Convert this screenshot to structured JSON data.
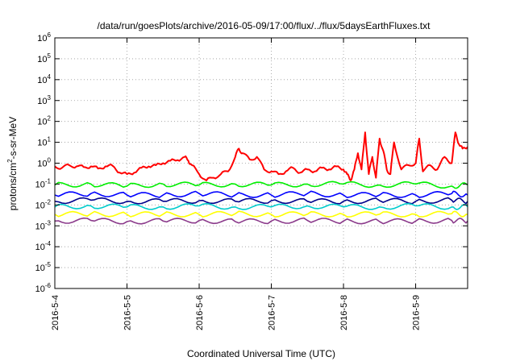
{
  "chart_data": {
    "type": "line",
    "title": "/data/run/goesPlots/archive/2016-05-09/17:00/flux/../flux/5daysEarthFluxes.txt",
    "xlabel": "Coordinated Universal Time (UTC)",
    "ylabel": {
      "prefix": "protons/cm",
      "sup": "2",
      "suffix": "-s-sr-MeV"
    },
    "y_scale": "log",
    "ylim": [
      1e-06,
      1000000.0
    ],
    "y_ticks": [
      {
        "value": 1e-06,
        "base": "10",
        "exp": "-6"
      },
      {
        "value": 1e-05,
        "base": "10",
        "exp": "-5"
      },
      {
        "value": 0.0001,
        "base": "10",
        "exp": "-4"
      },
      {
        "value": 0.001,
        "base": "10",
        "exp": "-3"
      },
      {
        "value": 0.01,
        "base": "10",
        "exp": "-2"
      },
      {
        "value": 0.1,
        "base": "10",
        "exp": "-1"
      },
      {
        "value": 1,
        "base": "10",
        "exp": "0"
      },
      {
        "value": 10,
        "base": "10",
        "exp": "1"
      },
      {
        "value": 100,
        "base": "10",
        "exp": "2"
      },
      {
        "value": 1000,
        "base": "10",
        "exp": "3"
      },
      {
        "value": 10000,
        "base": "10",
        "exp": "4"
      },
      {
        "value": 100000,
        "base": "10",
        "exp": "5"
      },
      {
        "value": 1000000,
        "base": "10",
        "exp": "6"
      }
    ],
    "x_ticks": [
      "2016-5-4",
      "2016-5-5",
      "2016-5-6",
      "2016-5-7",
      "2016-5-8",
      "2016-5-9"
    ],
    "x_range_days": [
      0,
      5.72
    ],
    "grid": "dotted",
    "colors": {
      "red": "#ff0000",
      "green": "#00ee00",
      "blue": "#0000ff",
      "navy": "#00008b",
      "cyan": "#00cccc",
      "yellow": "#ffff00",
      "purple": "#8b3a8b"
    },
    "series": [
      {
        "color": "#ff0000",
        "x": [
          0,
          0.1,
          0.2,
          0.3,
          0.4,
          0.5,
          0.6,
          0.7,
          0.8,
          0.9,
          1.0,
          1.1,
          1.2,
          1.3,
          1.4,
          1.5,
          1.6,
          1.7,
          1.8,
          1.85,
          1.9,
          2.0,
          2.1,
          2.2,
          2.3,
          2.4,
          2.5,
          2.55,
          2.6,
          2.7,
          2.8,
          2.9,
          3.0,
          3.1,
          3.2,
          3.3,
          3.4,
          3.5,
          3.6,
          3.7,
          3.8,
          3.9,
          4.0,
          4.05,
          4.1,
          4.15,
          4.2,
          4.25,
          4.3,
          4.35,
          4.4,
          4.45,
          4.5,
          4.55,
          4.6,
          4.65,
          4.7,
          4.8,
          4.9,
          5.0,
          5.05,
          5.1,
          5.2,
          5.3,
          5.4,
          5.5,
          5.55,
          5.6,
          5.65,
          5.72
        ],
        "y": [
          0.7,
          0.6,
          0.8,
          0.7,
          0.65,
          0.7,
          0.55,
          0.7,
          0.75,
          0.35,
          0.3,
          0.35,
          0.6,
          0.7,
          0.8,
          1.0,
          1.3,
          1.4,
          2.0,
          1.3,
          0.8,
          0.3,
          0.15,
          0.2,
          0.3,
          0.4,
          2.0,
          5.0,
          3.0,
          1.5,
          2.0,
          0.5,
          0.4,
          0.3,
          0.4,
          0.6,
          0.35,
          0.5,
          0.4,
          0.6,
          0.5,
          0.7,
          0.5,
          0.3,
          0.15,
          0.5,
          3.0,
          0.5,
          30.0,
          0.3,
          2.0,
          0.2,
          15.0,
          4.0,
          0.5,
          0.3,
          10.0,
          0.5,
          0.8,
          1.0,
          15.0,
          0.4,
          0.8,
          0.5,
          2.0,
          1.0,
          30.0,
          8.0,
          5.0,
          6.0
        ]
      },
      {
        "color": "#00ee00",
        "x": [
          0,
          0.5,
          1.0,
          1.5,
          2.0,
          2.5,
          3.0,
          3.5,
          4.0,
          4.5,
          5.0,
          5.5,
          5.72
        ],
        "y": [
          0.09,
          0.1,
          0.08,
          0.1,
          0.09,
          0.1,
          0.09,
          0.1,
          0.1,
          0.09,
          0.1,
          0.08,
          0.09
        ]
      },
      {
        "color": "#0000ff",
        "x": [
          0,
          0.5,
          1.0,
          1.5,
          2.0,
          2.5,
          3.0,
          3.5,
          4.0,
          4.5,
          5.0,
          5.5,
          5.72
        ],
        "y": [
          0.03,
          0.035,
          0.03,
          0.03,
          0.035,
          0.03,
          0.03,
          0.035,
          0.03,
          0.03,
          0.03,
          0.035,
          0.03
        ]
      },
      {
        "color": "#00008b",
        "x": [
          0,
          0.5,
          1.0,
          1.5,
          2.0,
          2.5,
          3.0,
          3.5,
          4.0,
          4.5,
          5.0,
          5.5,
          5.72
        ],
        "y": [
          0.015,
          0.017,
          0.015,
          0.015,
          0.016,
          0.015,
          0.016,
          0.015,
          0.015,
          0.016,
          0.015,
          0.017,
          0.015
        ]
      },
      {
        "color": "#00cccc",
        "x": [
          0,
          0.5,
          1.0,
          1.5,
          2.0,
          2.5,
          3.0,
          3.5,
          4.0,
          4.5,
          5.0,
          5.5,
          5.72
        ],
        "y": [
          0.008,
          0.009,
          0.008,
          0.008,
          0.009,
          0.008,
          0.008,
          0.009,
          0.008,
          0.008,
          0.009,
          0.008,
          0.008
        ]
      },
      {
        "color": "#ffff00",
        "x": [
          0,
          0.5,
          1.0,
          1.5,
          2.0,
          2.5,
          3.0,
          3.5,
          4.0,
          4.5,
          5.0,
          5.5,
          5.72
        ],
        "y": [
          0.0035,
          0.0038,
          0.0035,
          0.0036,
          0.0035,
          0.0038,
          0.0035,
          0.0036,
          0.0035,
          0.0036,
          0.0035,
          0.0038,
          0.0035
        ]
      },
      {
        "color": "#8b3a8b",
        "x": [
          0,
          0.5,
          1.0,
          1.5,
          2.0,
          2.5,
          3.0,
          3.5,
          4.0,
          4.5,
          5.0,
          5.5,
          5.72
        ],
        "y": [
          0.0017,
          0.0018,
          0.0016,
          0.0017,
          0.0018,
          0.0016,
          0.0017,
          0.0018,
          0.0017,
          0.0016,
          0.0017,
          0.0018,
          0.0017
        ]
      }
    ]
  }
}
